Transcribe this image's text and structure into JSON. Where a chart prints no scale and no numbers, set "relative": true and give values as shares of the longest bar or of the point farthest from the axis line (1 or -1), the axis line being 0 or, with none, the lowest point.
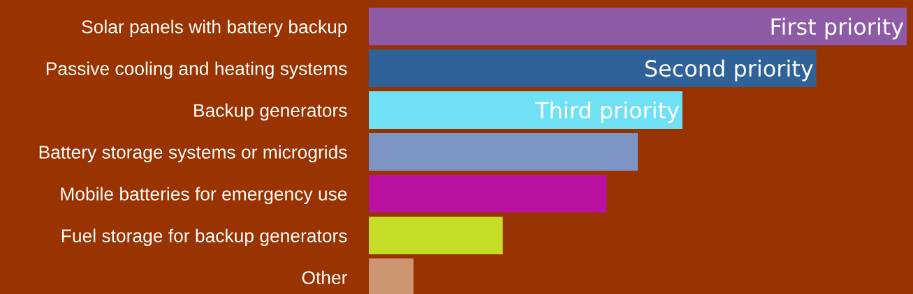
{
  "chart_data": {
    "type": "bar",
    "orientation": "horizontal",
    "relative": true,
    "categories": [
      "Solar panels with battery backup",
      "Passive cooling and heating systems",
      "Backup generators",
      "Battery storage systems or microgrids",
      "Mobile batteries for emergency use",
      "Fuel storage for backup generators",
      "Other"
    ],
    "values": [
      1,
      0.832,
      0.583,
      0.5,
      0.442,
      0.249,
      0.083
    ],
    "colors": [
      "#8e5aa6",
      "#2e6298",
      "#70e0f4",
      "#7d95c5",
      "#bb11a0",
      "#c6dd27",
      "#cd9673"
    ],
    "annotations": [
      {
        "text": "First priority",
        "x": 1,
        "y": "Solar panels with battery backup"
      },
      {
        "text": "Second priority",
        "x": 0.832,
        "y": "Passive cooling and heating systems"
      },
      {
        "text": "Third priority",
        "x": 0.583,
        "y": "Backup generators"
      }
    ],
    "grid": false,
    "legend": false
  }
}
